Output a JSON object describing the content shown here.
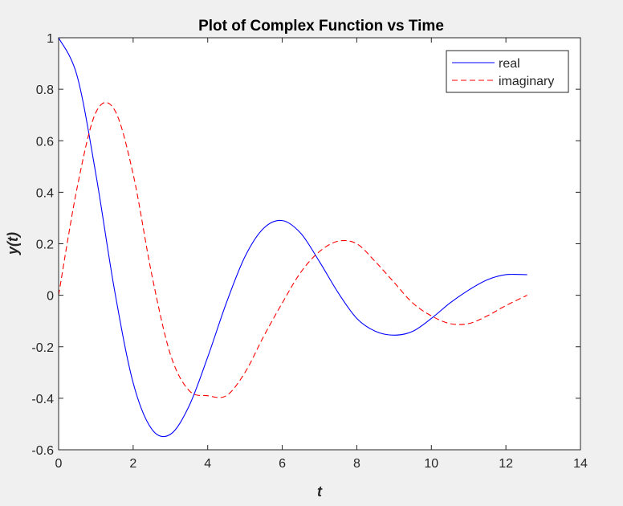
{
  "chart_data": {
    "type": "line",
    "title": "Plot of Complex Function vs Time",
    "xlabel": "t",
    "ylabel": "y(t)",
    "xlim": [
      0,
      14
    ],
    "ylim": [
      -0.6,
      1
    ],
    "xticks": [
      0,
      2,
      4,
      6,
      8,
      10,
      12,
      14
    ],
    "xtick_labels": [
      "0",
      "2",
      "4",
      "6",
      "8",
      "10",
      "12",
      "14"
    ],
    "yticks": [
      -0.6,
      -0.4,
      -0.2,
      0,
      0.2,
      0.4,
      0.6,
      0.8,
      1
    ],
    "ytick_labels": [
      "-0.6",
      "-0.4",
      "-0.2",
      "0",
      "0.2",
      "0.4",
      "0.6",
      "0.8",
      "1"
    ],
    "grid": false,
    "legend_position": "top-right",
    "x": [
      0,
      0.5,
      1,
      1.5,
      2,
      2.5,
      3,
      3.5,
      4,
      4.5,
      5,
      5.5,
      6,
      6.5,
      7,
      7.5,
      8,
      8.5,
      9,
      9.5,
      10,
      10.5,
      11,
      11.5,
      12,
      12.57
    ],
    "series": [
      {
        "name": "real",
        "color": "#0000ff",
        "style": "solid",
        "values": [
          1,
          0.85,
          0.47,
          0.02,
          -0.34,
          -0.52,
          -0.54,
          -0.43,
          -0.24,
          -0.03,
          0.15,
          0.26,
          0.29,
          0.24,
          0.13,
          0.01,
          -0.09,
          -0.14,
          -0.155,
          -0.14,
          -0.09,
          -0.03,
          0.02,
          0.06,
          0.08,
          0.08
        ]
      },
      {
        "name": "imaginary",
        "color": "#ff0000",
        "style": "dashed",
        "values": [
          0,
          0.42,
          0.71,
          0.72,
          0.47,
          0.08,
          -0.23,
          -0.37,
          -0.39,
          -0.39,
          -0.3,
          -0.16,
          -0.03,
          0.09,
          0.17,
          0.21,
          0.2,
          0.13,
          0.05,
          -0.03,
          -0.08,
          -0.11,
          -0.11,
          -0.08,
          -0.04,
          0
        ]
      }
    ]
  }
}
